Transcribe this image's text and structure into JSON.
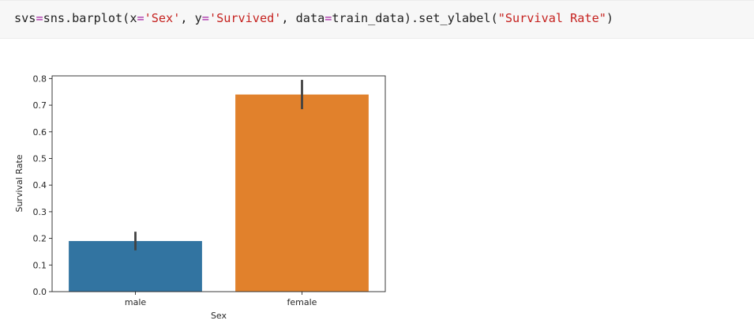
{
  "code": {
    "tokens": [
      {
        "text": "svs",
        "kind": "plain"
      },
      {
        "text": "=",
        "kind": "op"
      },
      {
        "text": "sns.barplot(x",
        "kind": "plain"
      },
      {
        "text": "=",
        "kind": "op"
      },
      {
        "text": "'Sex'",
        "kind": "str"
      },
      {
        "text": ", y",
        "kind": "plain"
      },
      {
        "text": "=",
        "kind": "op"
      },
      {
        "text": "'Survived'",
        "kind": "str"
      },
      {
        "text": ", data",
        "kind": "plain"
      },
      {
        "text": "=",
        "kind": "op"
      },
      {
        "text": "train_data).set_ylabel(",
        "kind": "plain"
      },
      {
        "text": "\"Survival Rate\"",
        "kind": "str"
      },
      {
        "text": ")",
        "kind": "plain"
      }
    ]
  },
  "chart_data": {
    "type": "bar",
    "categories": [
      "male",
      "female"
    ],
    "values": [
      0.19,
      0.74
    ],
    "error_bars": [
      [
        0.155,
        0.225
      ],
      [
        0.685,
        0.795
      ]
    ],
    "bar_colors": [
      "#3274a1",
      "#e1812c"
    ],
    "xlabel": "Sex",
    "ylabel": "Survival Rate",
    "ylim": [
      0,
      0.8
    ],
    "yticks": [
      "0.0",
      "0.1",
      "0.2",
      "0.3",
      "0.4",
      "0.5",
      "0.6",
      "0.7",
      "0.8"
    ],
    "grid": false
  }
}
